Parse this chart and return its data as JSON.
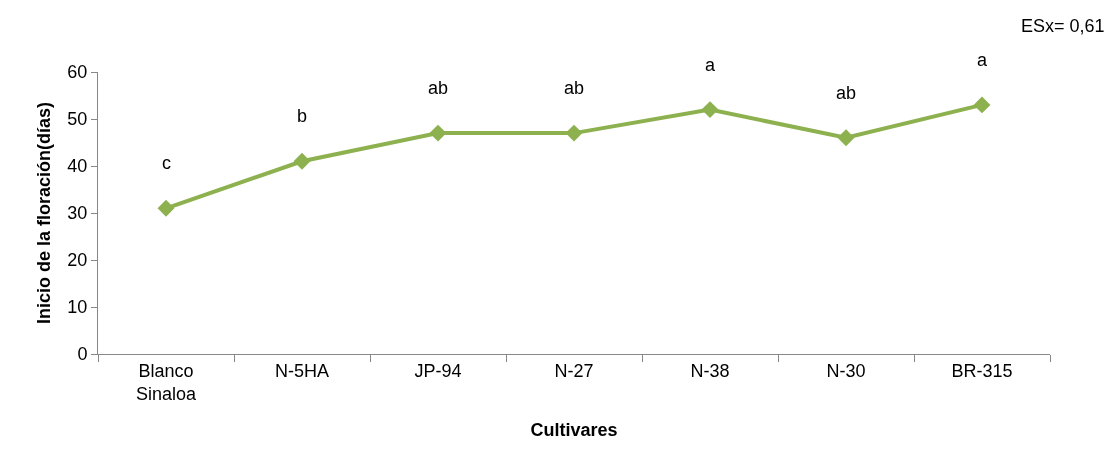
{
  "chart_data": {
    "type": "line",
    "xlabel": "Cultivares",
    "ylabel": "Inicio de la floración(días)",
    "categories": [
      "Blanco Sinaloa",
      "N-5HA",
      "JP-94",
      "N-27",
      "N-38",
      "N-30",
      "BR-315"
    ],
    "series": [
      {
        "color": "#8db14f",
        "values": [
          31,
          41,
          47,
          47,
          52,
          46,
          53
        ]
      }
    ],
    "ylim": [
      0,
      60
    ],
    "yticks": [
      0,
      10,
      20,
      30,
      40,
      50,
      60
    ],
    "marker": "diamond",
    "line_style": "solid",
    "annotations": [
      "ESx= 0,61",
      {
        "text": "c",
        "x": "Blanco Sinaloa",
        "y": 31
      },
      {
        "text": "b",
        "x": "N-5HA",
        "y": 41
      },
      {
        "text": "ab",
        "x": "JP-94",
        "y": 47
      },
      {
        "text": "ab",
        "x": "N-27",
        "y": 47
      },
      {
        "text": "a",
        "x": "N-38",
        "y": 52
      },
      {
        "text": "ab",
        "x": "N-30",
        "y": 46
      },
      {
        "text": "a",
        "x": "BR-315",
        "y": 53
      }
    ]
  }
}
